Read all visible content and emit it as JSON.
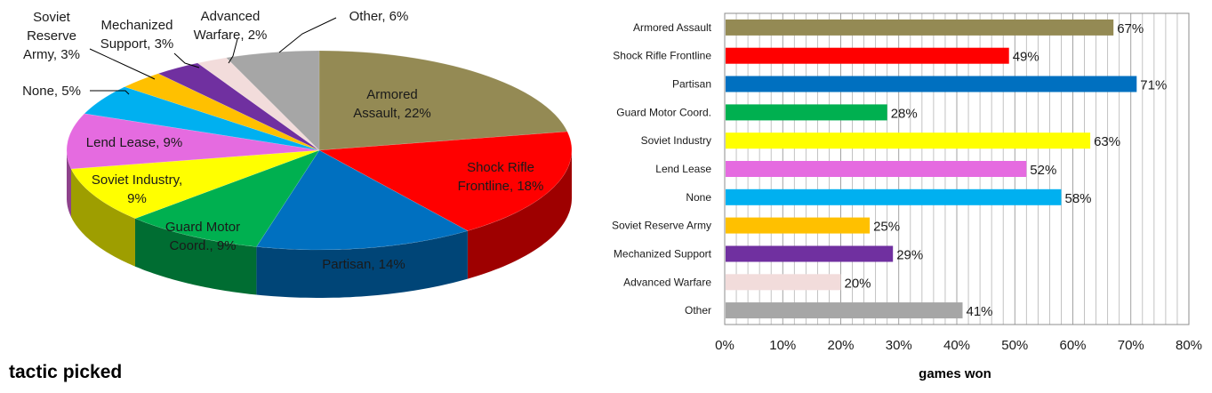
{
  "chart_data": [
    {
      "type": "pie",
      "title": "tactic picked",
      "slices": [
        {
          "label": "Armored Assault",
          "display": [
            "Armored",
            "Assault, 22%"
          ],
          "value": 22,
          "color": "#948A54"
        },
        {
          "label": "Shock Rifle Frontline",
          "display": [
            "Shock Rifle",
            "Frontline, 18%"
          ],
          "value": 18,
          "color": "#FF0000"
        },
        {
          "label": "Partisan",
          "display": [
            "Partisan, 14%"
          ],
          "value": 14,
          "color": "#0070C0"
        },
        {
          "label": "Guard Motor Coord.",
          "display": [
            "Guard Motor",
            "Coord., 9%"
          ],
          "value": 9,
          "color": "#00B050"
        },
        {
          "label": "Soviet Industry",
          "display": [
            "Soviet Industry,",
            "9%"
          ],
          "value": 9,
          "color": "#FFFF00"
        },
        {
          "label": "Lend Lease",
          "display": [
            "Lend Lease, 9%"
          ],
          "value": 9,
          "color": "#E56BE0"
        },
        {
          "label": "None",
          "display": [
            "None, 5%"
          ],
          "value": 5,
          "color": "#00B0F0"
        },
        {
          "label": "Soviet Reserve Army",
          "display": [
            "Soviet",
            "Reserve",
            "Army, 3%"
          ],
          "value": 3,
          "color": "#FFC000"
        },
        {
          "label": "Mechanized Support",
          "display": [
            "Mechanized",
            "Support, 3%"
          ],
          "value": 3,
          "color": "#7030A0"
        },
        {
          "label": "Advanced Warfare",
          "display": [
            "Advanced",
            "Warfare, 2%"
          ],
          "value": 2,
          "color": "#F2DCDB"
        },
        {
          "label": "Other",
          "display": [
            "Other, 6%"
          ],
          "value": 6,
          "color": "#A6A6A6"
        }
      ]
    },
    {
      "type": "bar",
      "orientation": "horizontal",
      "xlabel": "games won",
      "xlim": [
        0,
        80
      ],
      "xticks": [
        "0%",
        "10%",
        "20%",
        "30%",
        "40%",
        "50%",
        "60%",
        "70%",
        "80%"
      ],
      "grid": true,
      "categories": [
        "Armored Assault",
        "Shock Rifle Frontline",
        "Partisan",
        "Guard Motor Coord.",
        "Soviet Industry",
        "Lend Lease",
        "None",
        "Soviet Reserve Army",
        "Mechanized Support",
        "Advanced Warfare",
        "Other"
      ],
      "values": [
        67,
        49,
        71,
        28,
        63,
        52,
        58,
        25,
        29,
        20,
        41
      ],
      "value_labels": [
        "67%",
        "49%",
        "71%",
        "28%",
        "63%",
        "52%",
        "58%",
        "25%",
        "29%",
        "20%",
        "41%"
      ],
      "colors": [
        "#948A54",
        "#FF0000",
        "#0070C0",
        "#00B050",
        "#FFFF00",
        "#E56BE0",
        "#00B0F0",
        "#FFC000",
        "#7030A0",
        "#F2DCDB",
        "#A6A6A6"
      ]
    }
  ]
}
